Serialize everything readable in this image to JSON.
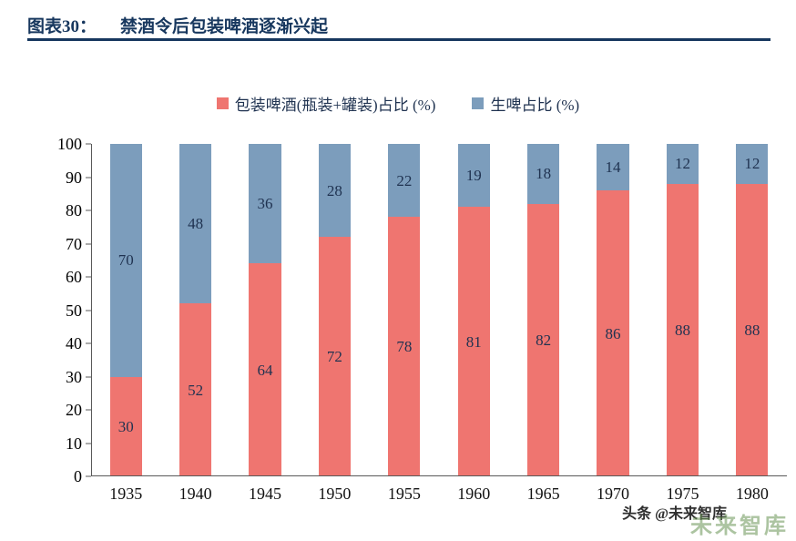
{
  "header": {
    "chart_label": "图表30：",
    "title": "禁酒令后包装啤酒逐渐兴起"
  },
  "chart_data": {
    "type": "bar",
    "stacked": true,
    "title": "禁酒令后包装啤酒逐渐兴起",
    "categories": [
      "1935",
      "1940",
      "1945",
      "1950",
      "1955",
      "1960",
      "1965",
      "1970",
      "1975",
      "1980"
    ],
    "series": [
      {
        "name": "包装啤酒(瓶装+罐装)占比 (%)",
        "color": "#ef7570",
        "values": [
          30,
          52,
          64,
          72,
          78,
          81,
          82,
          86,
          88,
          88
        ]
      },
      {
        "name": "生啤占比 (%)",
        "color": "#7c9dbc",
        "values": [
          70,
          48,
          36,
          28,
          22,
          19,
          18,
          14,
          12,
          12
        ]
      }
    ],
    "xlabel": "",
    "ylabel": "",
    "ylim": [
      0,
      100
    ],
    "yticks": [
      0,
      10,
      20,
      30,
      40,
      50,
      60,
      70,
      80,
      90,
      100
    ],
    "grid": false,
    "legend_position": "top",
    "value_labels": "inside-center"
  },
  "watermark": {
    "text": "头条 @未来智库",
    "logo_text": "未来智库"
  },
  "colors": {
    "title_navy": "#17375e",
    "value_label": "#1f3250",
    "axis": "#595959"
  }
}
